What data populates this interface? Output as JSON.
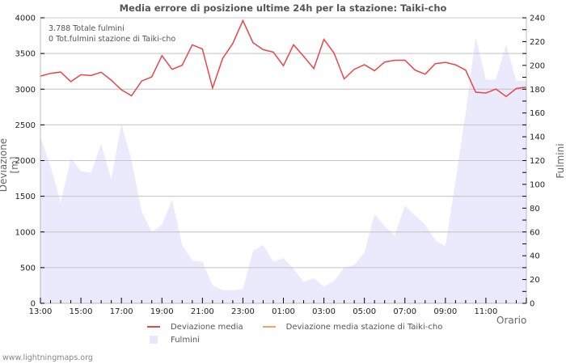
{
  "title": "Media errore di posizione ultime 24h per la stazione: Taiki-cho",
  "stats": {
    "total_strikes": "3.788 Totale fulmini",
    "station_strikes": "0 Tot.fulmini stazione di Taiki-cho"
  },
  "axes": {
    "left_title": "Deviazione  [m]",
    "right_title": "Fulmini",
    "x_title": "Orario"
  },
  "legend": {
    "items": [
      {
        "label": "Deviazione media",
        "type": "line",
        "color": "#e8464b"
      },
      {
        "label": "Deviazione media stazione di Taiki-cho",
        "type": "line",
        "color": "#f4a460"
      },
      {
        "label": "Fulmini",
        "type": "area",
        "color": "#e8e8fc"
      }
    ]
  },
  "footer": "www.lightningmaps.org",
  "colors": {
    "deviation_line": "#e8464b",
    "station_line": "#f4a460",
    "strikes_fill": "#eaeafc",
    "grid": "#c8c8c8",
    "axis": "#bbbbbb"
  },
  "chart_data": {
    "type": "line",
    "title": "Media errore di posizione ultime 24h per la stazione: Taiki-cho",
    "xlabel": "Orario",
    "ylabel": "Deviazione  [m]",
    "y2label": "Fulmini",
    "ylim": [
      0,
      4000
    ],
    "y2lim": [
      0,
      240
    ],
    "grid": true,
    "legend_position": "bottom",
    "x_tick_labels": [
      "13:00",
      "15:00",
      "17:00",
      "19:00",
      "21:00",
      "23:00",
      "01:00",
      "03:00",
      "05:00",
      "07:00",
      "09:00",
      "11:00"
    ],
    "y_ticks": [
      0,
      500,
      1000,
      1500,
      2000,
      2500,
      3000,
      3500,
      4000
    ],
    "y2_ticks": [
      0,
      20,
      40,
      60,
      80,
      100,
      120,
      140,
      160,
      180,
      200,
      220,
      240
    ],
    "x": [
      "13:00",
      "13:30",
      "14:00",
      "14:30",
      "15:00",
      "15:30",
      "16:00",
      "16:30",
      "17:00",
      "17:30",
      "18:00",
      "18:30",
      "19:00",
      "19:30",
      "20:00",
      "20:30",
      "21:00",
      "21:30",
      "22:00",
      "22:30",
      "23:00",
      "23:30",
      "00:00",
      "00:30",
      "01:00",
      "01:30",
      "02:00",
      "02:30",
      "03:00",
      "03:30",
      "04:00",
      "04:30",
      "05:00",
      "05:30",
      "06:00",
      "06:30",
      "07:00",
      "07:30",
      "08:00",
      "08:30",
      "09:00",
      "09:30",
      "10:00",
      "10:30",
      "11:00",
      "11:30",
      "12:00",
      "12:30",
      "13:00"
    ],
    "series": [
      {
        "name": "Deviazione media",
        "type": "line",
        "axis": "left",
        "values": [
          3183,
          3221,
          3240,
          3106,
          3202,
          3191,
          3237,
          3126,
          2992,
          2908,
          3114,
          3172,
          3470,
          3278,
          3335,
          3621,
          3564,
          3016,
          3431,
          3641,
          3962,
          3652,
          3553,
          3520,
          3328,
          3621,
          3461,
          3290,
          3698,
          3507,
          3145,
          3278,
          3343,
          3259,
          3380,
          3405,
          3406,
          3267,
          3210,
          3357,
          3376,
          3342,
          3267,
          2957,
          2946,
          3002,
          2897,
          3010,
          3028
        ]
      },
      {
        "name": "Deviazione media stazione di Taiki-cho",
        "type": "line",
        "axis": "left",
        "values": []
      },
      {
        "name": "Fulmini",
        "type": "area",
        "axis": "right",
        "values": [
          140,
          115,
          85,
          122,
          111,
          110,
          134,
          104,
          151,
          120,
          77,
          60,
          66,
          87,
          49,
          36,
          35,
          15,
          11,
          11,
          12,
          44,
          49,
          35,
          38,
          29,
          18,
          21,
          14,
          19,
          30,
          32,
          43,
          75,
          65,
          57,
          82,
          74,
          66,
          53,
          48,
          103,
          160,
          224,
          188,
          188,
          218,
          187,
          187
        ]
      }
    ]
  }
}
